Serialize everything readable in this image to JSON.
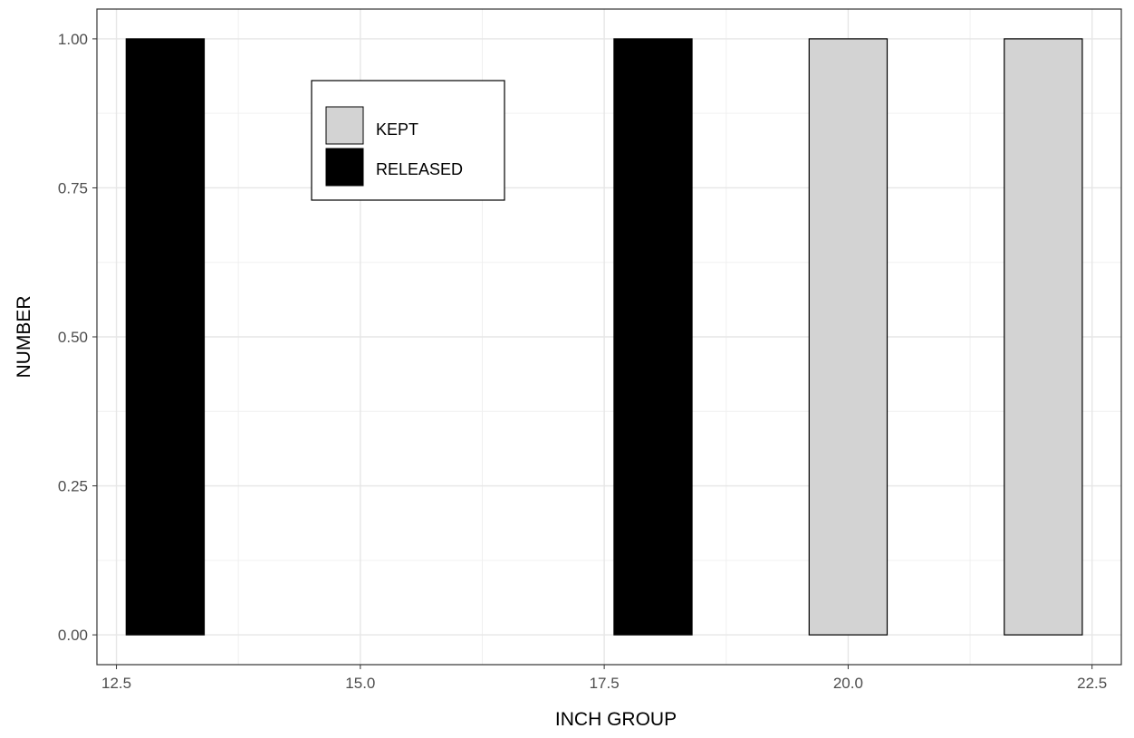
{
  "chart_data": {
    "type": "bar",
    "title": "",
    "xlabel": "INCH GROUP",
    "ylabel": "NUMBER",
    "xlim": [
      12.3,
      22.8
    ],
    "ylim": [
      -0.05,
      1.05
    ],
    "x_ticks": [
      "12.5",
      "15.0",
      "17.5",
      "20.0",
      "22.5"
    ],
    "x_tick_values": [
      12.5,
      15.0,
      17.5,
      20.0,
      22.5
    ],
    "y_ticks": [
      "0.00",
      "0.25",
      "0.50",
      "0.75",
      "1.00"
    ],
    "y_tick_values": [
      0.0,
      0.25,
      0.5,
      0.75,
      1.0
    ],
    "x_minor_values": [
      13.75,
      16.25,
      18.75,
      21.25
    ],
    "y_minor_values": [
      0.125,
      0.375,
      0.625,
      0.875
    ],
    "bar_width": 0.8,
    "grid": true,
    "legend_position": "top-left (inside plot)",
    "series": [
      {
        "name": "KEPT",
        "color": "#d3d3d3",
        "x": [
          20,
          22
        ],
        "values": [
          1,
          1
        ]
      },
      {
        "name": "RELEASED",
        "color": "#000000",
        "x": [
          13,
          18
        ],
        "values": [
          1,
          1
        ]
      }
    ]
  }
}
